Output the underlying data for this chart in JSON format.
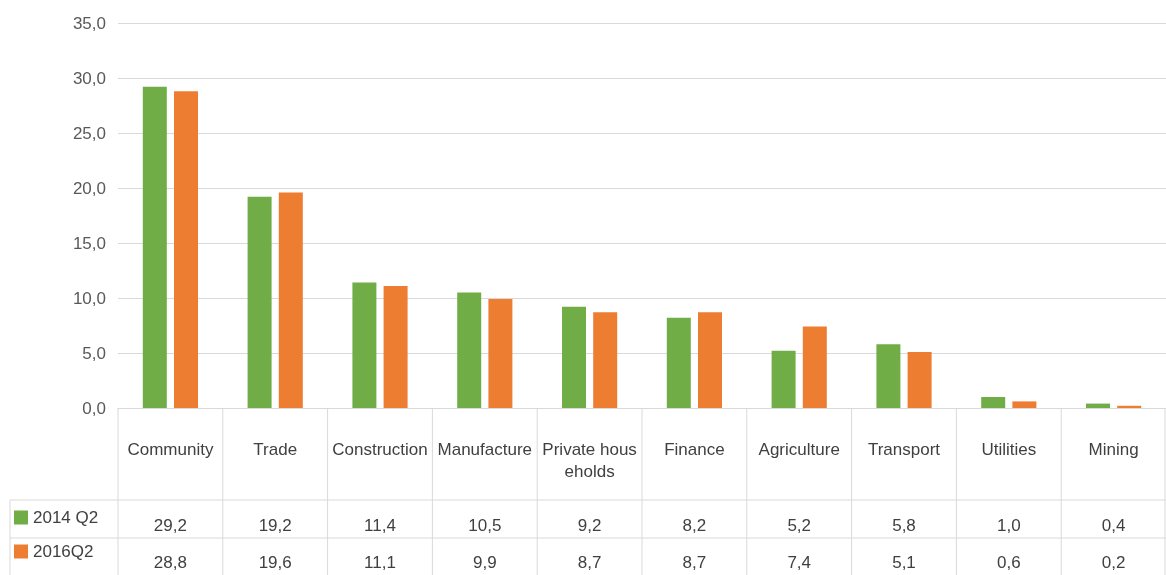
{
  "chart_data": {
    "type": "bar",
    "categories": [
      "Community",
      "Trade",
      "Construction",
      "Manufacture",
      "Private households",
      "Finance",
      "Agriculture",
      "Transport",
      "Utilities",
      "Mining"
    ],
    "series": [
      {
        "name": "2014 Q2",
        "color": "#70ad47",
        "values": [
          29.2,
          19.2,
          11.4,
          10.5,
          9.2,
          8.2,
          5.2,
          5.8,
          1.0,
          0.4
        ],
        "value_labels": [
          "29,2",
          "19,2",
          "11,4",
          "10,5",
          "9,2",
          "8,2",
          "5,2",
          "5,8",
          "1,0",
          "0,4"
        ]
      },
      {
        "name": "2016Q2",
        "color": "#ed7d31",
        "values": [
          28.8,
          19.6,
          11.1,
          9.9,
          8.7,
          8.7,
          7.4,
          5.1,
          0.6,
          0.2
        ],
        "value_labels": [
          "28,8",
          "19,6",
          "11,1",
          "9,9",
          "8,7",
          "8,7",
          "7,4",
          "5,1",
          "0,6",
          "0,2"
        ]
      }
    ],
    "ylim": [
      0,
      35
    ],
    "yticks": [
      {
        "value": 0,
        "label": "0,0"
      },
      {
        "value": 5,
        "label": "5,0"
      },
      {
        "value": 10,
        "label": "10,0"
      },
      {
        "value": 15,
        "label": "15,0"
      },
      {
        "value": 20,
        "label": "20,0"
      },
      {
        "value": 25,
        "label": "25,0"
      },
      {
        "value": 30,
        "label": "30,0"
      },
      {
        "value": 35,
        "label": "35,0"
      }
    ],
    "grid": "y",
    "legend": "bottom"
  }
}
